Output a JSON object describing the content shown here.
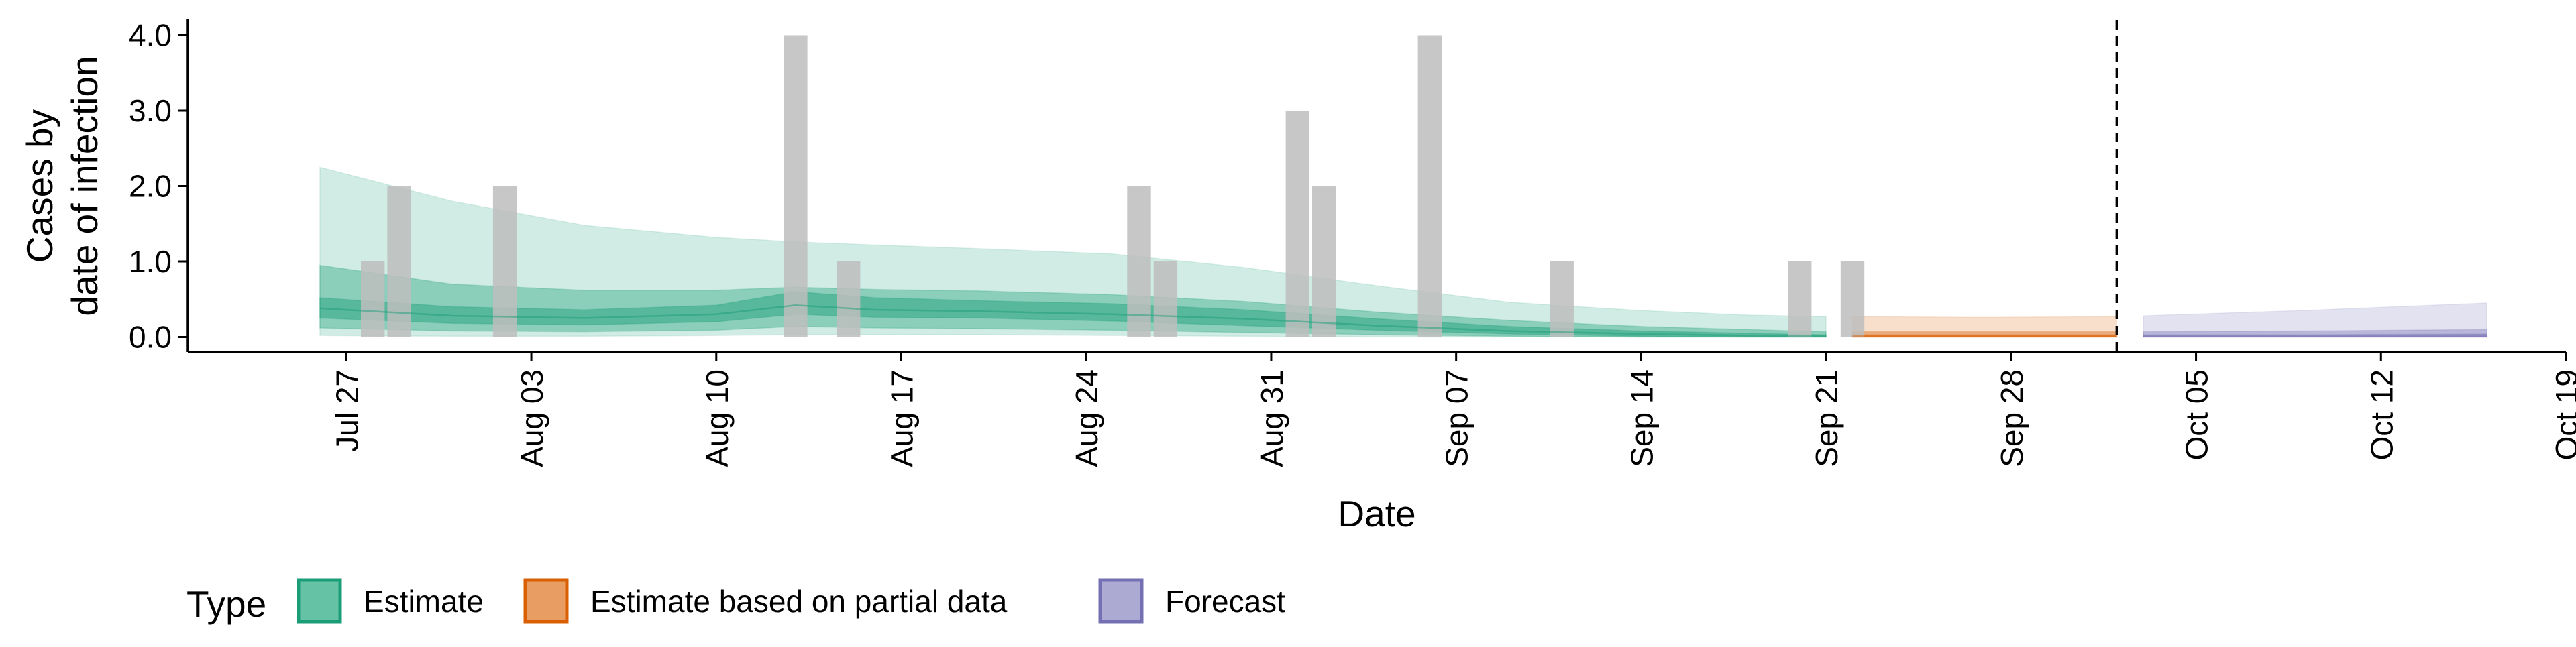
{
  "chart_data": {
    "type": "area",
    "xlabel": "Date",
    "ylabel_lines": [
      "Cases by",
      "date of infection"
    ],
    "xlim": [
      "2020-07-21",
      "2020-10-19"
    ],
    "ylim": [
      -0.2,
      4.2
    ],
    "x_tick_labels": [
      "Jul 27",
      "Aug 03",
      "Aug 10",
      "Aug 17",
      "Aug 24",
      "Aug 31",
      "Sep 07",
      "Sep 14",
      "Sep 21",
      "Sep 28",
      "Oct 05",
      "Oct 12",
      "Oct 19"
    ],
    "x_tick_dates": [
      "2020-07-27",
      "2020-08-03",
      "2020-08-10",
      "2020-08-17",
      "2020-08-24",
      "2020-08-31",
      "2020-09-07",
      "2020-09-14",
      "2020-09-21",
      "2020-09-28",
      "2020-10-05",
      "2020-10-12",
      "2020-10-19"
    ],
    "y_ticks": [
      0,
      1,
      2,
      3,
      4
    ],
    "y_tick_labels": [
      "0.0",
      "1.0",
      "2.0",
      "3.0",
      "4.0"
    ],
    "forecast_boundary": "2020-10-02",
    "observed_cases": [
      {
        "date": "2020-07-28",
        "value": 1
      },
      {
        "date": "2020-07-29",
        "value": 2
      },
      {
        "date": "2020-08-02",
        "value": 2
      },
      {
        "date": "2020-08-13",
        "value": 4
      },
      {
        "date": "2020-08-15",
        "value": 1
      },
      {
        "date": "2020-08-26",
        "value": 2
      },
      {
        "date": "2020-08-27",
        "value": 1
      },
      {
        "date": "2020-09-01",
        "value": 3
      },
      {
        "date": "2020-09-02",
        "value": 2
      },
      {
        "date": "2020-09-06",
        "value": 4
      },
      {
        "date": "2020-09-11",
        "value": 1
      },
      {
        "date": "2020-09-20",
        "value": 1
      },
      {
        "date": "2020-09-22",
        "value": 1
      }
    ],
    "series": [
      {
        "name": "Estimate",
        "color": "#1B9E77",
        "dates": [
          "2020-07-26",
          "2020-07-31",
          "2020-08-05",
          "2020-08-10",
          "2020-08-13",
          "2020-08-16",
          "2020-08-20",
          "2020-08-25",
          "2020-08-30",
          "2020-09-04",
          "2020-09-09",
          "2020-09-14",
          "2020-09-18",
          "2020-09-21"
        ],
        "median": [
          0.38,
          0.28,
          0.25,
          0.3,
          0.42,
          0.36,
          0.34,
          0.3,
          0.24,
          0.15,
          0.08,
          0.04,
          0.02,
          0.01
        ],
        "lower_20": [
          0.25,
          0.18,
          0.16,
          0.2,
          0.3,
          0.26,
          0.25,
          0.21,
          0.15,
          0.09,
          0.04,
          0.01,
          0.0,
          0.0
        ],
        "upper_20": [
          0.52,
          0.4,
          0.36,
          0.42,
          0.6,
          0.52,
          0.48,
          0.44,
          0.36,
          0.24,
          0.14,
          0.08,
          0.05,
          0.03
        ],
        "lower_50": [
          0.12,
          0.08,
          0.07,
          0.09,
          0.14,
          0.12,
          0.11,
          0.09,
          0.06,
          0.03,
          0.01,
          0.0,
          0.0,
          0.0
        ],
        "upper_50": [
          0.95,
          0.7,
          0.62,
          0.62,
          0.66,
          0.63,
          0.61,
          0.56,
          0.47,
          0.33,
          0.22,
          0.14,
          0.1,
          0.07
        ],
        "lower_90": [
          0.02,
          0.01,
          0.01,
          0.02,
          0.03,
          0.03,
          0.03,
          0.02,
          0.01,
          0.0,
          0.0,
          0.0,
          0.0,
          0.0
        ],
        "upper_90": [
          2.25,
          1.8,
          1.48,
          1.32,
          1.26,
          1.22,
          1.17,
          1.1,
          0.92,
          0.68,
          0.46,
          0.35,
          0.29,
          0.27
        ]
      },
      {
        "name": "Estimate based on partial data",
        "color": "#D95F02",
        "dates": [
          "2020-09-22",
          "2020-09-27",
          "2020-10-02"
        ],
        "median": [
          0.01,
          0.01,
          0.01
        ],
        "lower_20": [
          0.0,
          0.0,
          0.0
        ],
        "upper_20": [
          0.03,
          0.03,
          0.03
        ],
        "lower_50": [
          0.0,
          0.0,
          0.0
        ],
        "upper_50": [
          0.07,
          0.07,
          0.07
        ],
        "lower_90": [
          0.0,
          0.0,
          0.0
        ],
        "upper_90": [
          0.27,
          0.26,
          0.27
        ]
      },
      {
        "name": "Forecast",
        "color": "#7570B3",
        "dates": [
          "2020-10-03",
          "2020-10-09",
          "2020-10-16"
        ],
        "median": [
          0.01,
          0.01,
          0.01
        ],
        "lower_20": [
          0.0,
          0.0,
          0.0
        ],
        "upper_20": [
          0.03,
          0.03,
          0.04
        ],
        "lower_50": [
          0.0,
          0.0,
          0.0
        ],
        "upper_50": [
          0.07,
          0.08,
          0.1
        ],
        "lower_90": [
          0.0,
          0.0,
          0.0
        ],
        "upper_90": [
          0.28,
          0.35,
          0.45
        ]
      }
    ],
    "bar_color": "#bdbdbd",
    "legend": {
      "title": "Type",
      "position": "bottom",
      "items": [
        {
          "label": "Estimate",
          "fill": "#66C2A5",
          "stroke": "#1B9E77"
        },
        {
          "label": "Estimate based on partial data",
          "fill": "#E89D62",
          "stroke": "#D95F02"
        },
        {
          "label": "Forecast",
          "fill": "#ACA9D3",
          "stroke": "#7570B3"
        }
      ]
    },
    "grid": false
  }
}
